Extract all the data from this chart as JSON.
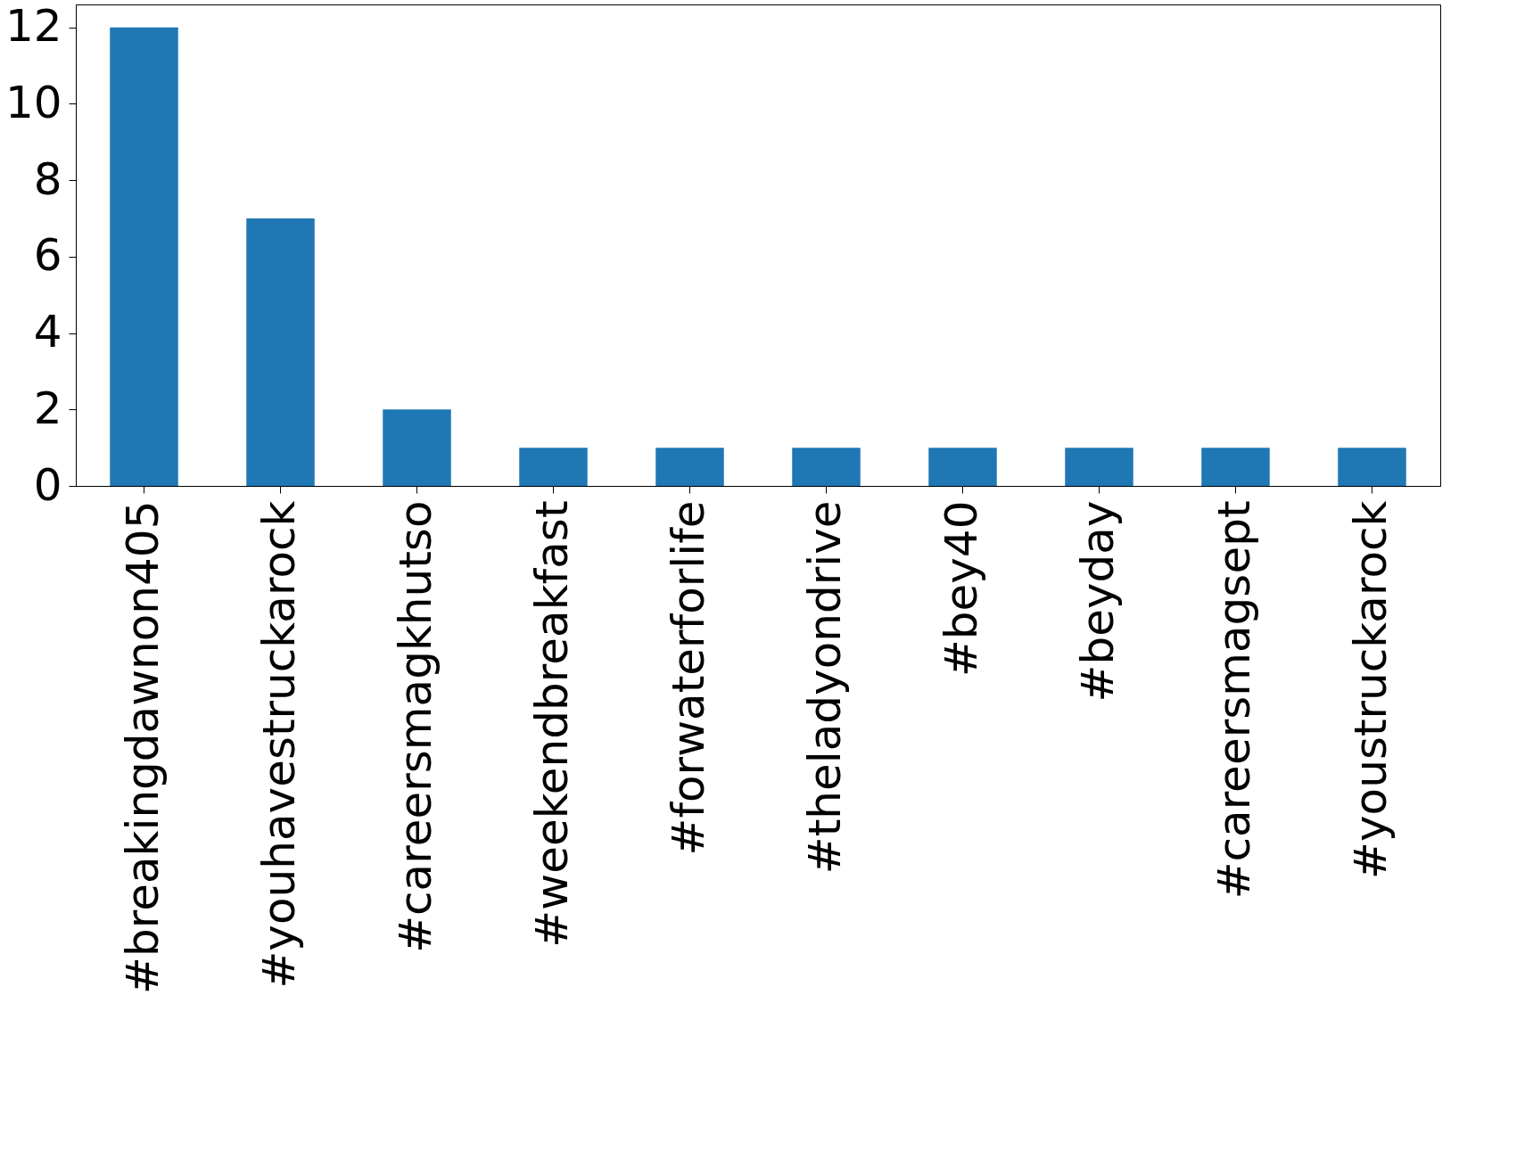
{
  "chart_data": {
    "type": "bar",
    "categories": [
      "#breakingdawnon405",
      "#youhavestruckarock",
      "#careersmagkhutso",
      "#weekendbreakfast",
      "#forwaterforlife",
      "#theladyondrive",
      "#bey40",
      "#beyday",
      "#careersmagsept",
      "#youstruckarock"
    ],
    "values": [
      12,
      7,
      2,
      1,
      1,
      1,
      1,
      1,
      1,
      1
    ],
    "color": "#1f77b4",
    "ylim": [
      0,
      12.6
    ],
    "yticks": [
      0,
      2,
      4,
      6,
      8,
      10,
      12
    ],
    "grid": false
  }
}
